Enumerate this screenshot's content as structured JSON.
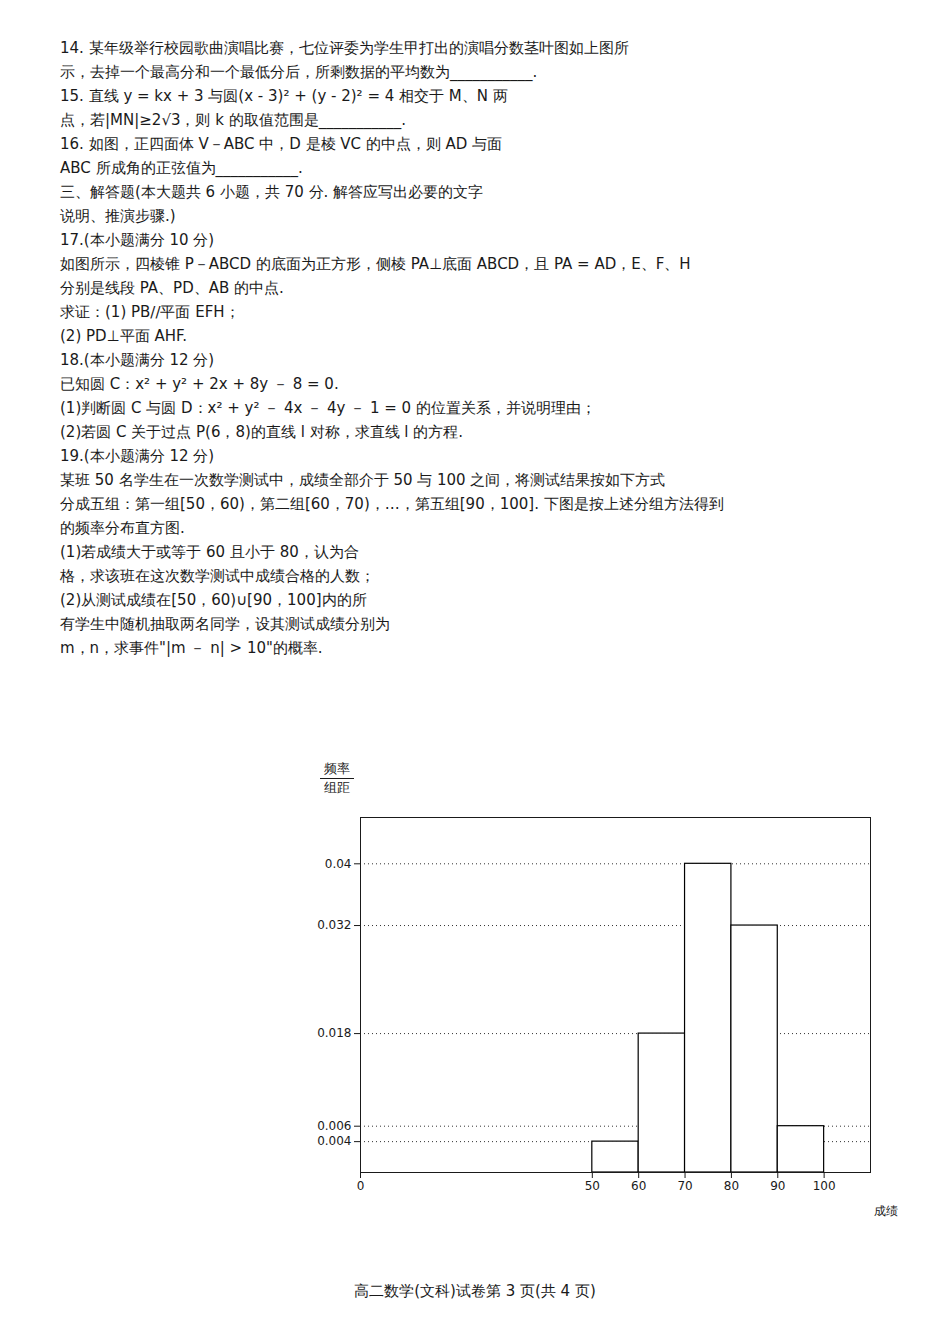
{
  "chart_data": {
    "type": "histogram",
    "title": "高二数学(文科)试卷第 3 页(共 4 页)",
    "annotations": [
      "14. 某年级举行校园歌曲演唱比赛，七位评委为学生甲打出的演唱分数茎叶图如上图所",
      "示，去掉一个最高分和一个最低分后，所剩数据的平均数为___________.",
      "15. 直线 y = kx + 3 与圆(x - 3)² + (y - 2)² = 4 相交于 M、N 两",
      "点，若|MN|≥2√3，则 k 的取值范围是___________.",
      "16. 如图，正四面体 V－ABC 中，D 是棱 VC 的中点，则 AD 与面",
      "ABC 所成角的正弦值为___________.",
      "三、解答题(本大题共 6 小题，共 70 分. 解答应写出必要的文字",
      "说明、推演步骤.)",
      "17.(本小题满分 10 分)",
      "如图所示，四棱锥 P－ABCD 的底面为正方形，侧棱 PA⊥底面 ABCD，且 PA = AD，E、F、H",
      "分别是线段 PA、PD、AB 的中点.",
      "求证：(1) PB∕∕平面 EFH；",
      "(2) PD⊥平面 AHF.",
      "18.(本小题满分 12 分)",
      "已知圆 C：x² + y² + 2x + 8y － 8 = 0.",
      "(1)判断圆 C 与圆 D：x² + y² － 4x － 4y － 1 = 0 的位置关系，并说明理由；",
      "(2)若圆 C 关于过点 P(6，8)的直线 l 对称，求直线 l 的方程.",
      "19.(本小题满分 12 分)",
      "某班 50 名学生在一次数学测试中，成绩全部介于 50 与 100 之间，将测试结果按如下方式",
      "分成五组：第一组[50，60)，第二组[60，70)，…，第五组[90，100]. 下图是按上述分组方法得到",
      "的频率分布直方图.",
      "(1)若成绩大于或等于 60 且小于 80，认为合",
      "格，求该班在这次数学测试中成绩合格的人数；",
      "(2)从测试成绩在[50，60)∪[90，100]内的所",
      "有学生中随机抽取两名同学，设其测试成绩分别为",
      "m，n，求事件\"|m － n| > 10\"的概率."
    ],
    "xlabel": "成绩",
    "ylabel": [
      "频率",
      "组距"
    ],
    "bins": [
      50,
      60,
      70,
      80,
      90,
      100
    ],
    "values": [
      0.004,
      0.018,
      0.04,
      0.032,
      0.006
    ],
    "color": "white",
    "xlim": [
      0,
      110
    ],
    "ylim": [
      0,
      0.046
    ],
    "xticks": [
      0,
      50,
      60,
      70,
      80,
      90,
      100
    ],
    "yticks": [
      0.004,
      0.006,
      0.018,
      0.032,
      0.04
    ],
    "grid": true
  }
}
